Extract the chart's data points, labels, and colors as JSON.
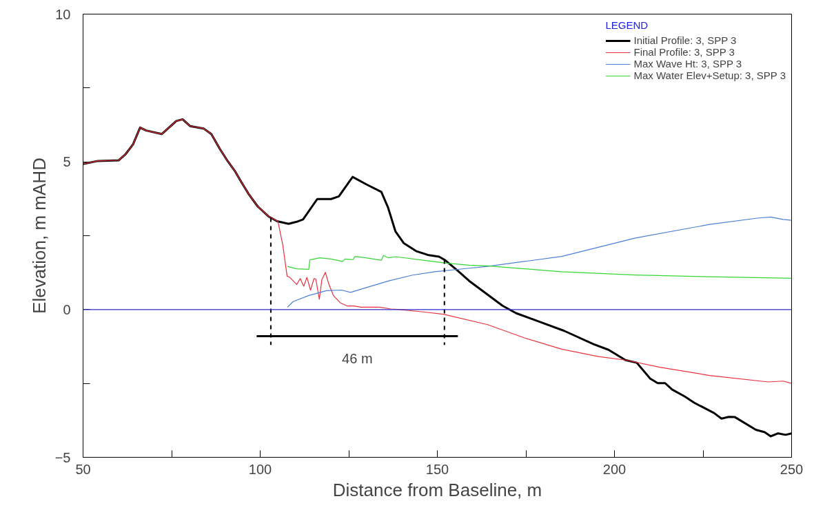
{
  "chart_data": {
    "type": "line",
    "xlabel": "Distance from Baseline, m",
    "ylabel": "Elevation, m mAHD",
    "legend_title": "LEGEND",
    "legend": "top right",
    "grid": false,
    "marker": "none",
    "line_style": "solid",
    "xlim": [
      50,
      250
    ],
    "ylim": [
      -5,
      10
    ],
    "xticks": [
      50,
      {
        "value": 75,
        "label": null
      },
      100,
      {
        "value": 125,
        "label": null
      },
      150,
      {
        "value": 175,
        "label": null
      },
      200,
      {
        "value": 225,
        "label": null
      },
      250
    ],
    "yticks": [
      -5,
      {
        "value": -2.5,
        "label": null
      },
      0,
      {
        "value": 2.5,
        "label": null
      },
      5,
      {
        "value": 7.5,
        "label": null
      },
      10
    ],
    "series": [
      {
        "name": "Initial Profile: 3, SPP 3",
        "color": "#000000",
        "x": [
          50,
          54.2,
          60.0,
          62,
          64.1,
          66.1,
          67.8,
          72.2,
          76.3,
          78.1,
          80.2,
          84.0,
          86.2,
          88.6,
          90.9,
          92.8,
          94.7,
          96.7,
          99.3,
          102.5,
          104.8,
          108.0,
          110.3,
          112.1,
          116.1,
          120.0,
          122.2,
          126.1,
          130.1,
          134.2,
          136.1,
          138.2,
          140.5,
          144.0,
          147.3,
          150.5,
          152.1,
          155.7,
          159.0,
          168.4,
          172.2,
          178.1,
          185.8,
          194.1,
          198.3,
          203.1,
          206.3,
          210.1,
          212.2,
          214.3,
          216.3,
          219.8,
          222.6,
          228.1,
          230.2,
          232.3,
          234.0,
          239.9,
          242.4,
          244.1,
          246.2,
          248.3,
          250
        ],
        "values": [
          4.93,
          5.03,
          5.05,
          5.26,
          5.59,
          6.16,
          6.06,
          5.94,
          6.38,
          6.44,
          6.21,
          6.13,
          5.94,
          5.44,
          5.01,
          4.7,
          4.31,
          3.92,
          3.49,
          3.14,
          2.99,
          2.9,
          2.97,
          3.05,
          3.74,
          3.74,
          3.83,
          4.49,
          4.23,
          3.98,
          3.45,
          2.64,
          2.25,
          1.98,
          1.85,
          1.79,
          1.68,
          1.32,
          0.97,
          0.13,
          -0.12,
          -0.38,
          -0.72,
          -1.17,
          -1.36,
          -1.71,
          -1.8,
          -2.34,
          -2.49,
          -2.49,
          -2.71,
          -2.94,
          -3.16,
          -3.5,
          -3.69,
          -3.63,
          -3.64,
          -4.07,
          -4.15,
          -4.29,
          -4.19,
          -4.24,
          -4.19
        ]
      },
      {
        "name": "Final Profile: 3, SPP 3",
        "color": "#e8303c",
        "x": [
          50,
          54.2,
          60.0,
          62,
          64.1,
          66.1,
          67.8,
          72.2,
          76.3,
          78.1,
          80.2,
          84.0,
          86.2,
          88.6,
          90.9,
          92.8,
          94.7,
          96.7,
          99.3,
          102.5,
          105.0,
          106.4,
          107.6,
          108.4,
          109.3,
          110.3,
          111.3,
          112.3,
          113.2,
          114.2,
          115.2,
          115.7,
          116.7,
          117.4,
          118.4,
          119.4,
          120.7,
          122.6,
          124.6,
          126.5,
          128.4,
          131.1,
          133.7,
          136.9,
          139.5,
          146.0,
          151.7,
          164.2,
          174.6,
          185.1,
          195.5,
          203.1,
          212.8,
          226.8,
          243.4,
          247.6,
          250
        ],
        "values": [
          4.93,
          5.03,
          5.05,
          5.26,
          5.59,
          6.16,
          6.06,
          5.94,
          6.38,
          6.44,
          6.21,
          6.13,
          5.94,
          5.44,
          5.01,
          4.7,
          4.31,
          3.92,
          3.49,
          3.14,
          2.99,
          2.17,
          1.13,
          1.09,
          0.97,
          0.85,
          1.05,
          0.79,
          1.09,
          0.66,
          1.05,
          1.03,
          0.35,
          1.01,
          1.26,
          0.85,
          0.47,
          0.23,
          0.12,
          0.12,
          0.08,
          0.08,
          0.08,
          0.02,
          0.0,
          -0.08,
          -0.16,
          -0.51,
          -0.96,
          -1.34,
          -1.59,
          -1.71,
          -1.95,
          -2.23,
          -2.45,
          -2.42,
          -2.5
        ]
      },
      {
        "name": "Max Wave Ht: 3, SPP 3",
        "color": "#4a7fd6",
        "x": [
          107.7,
          109.3,
          113.6,
          118.7,
          123.0,
          125.5,
          129.8,
          136.3,
          142.8,
          149.2,
          159.0,
          164.2,
          185.1,
          205.9,
          226.8,
          240.7,
          244.1,
          247.6,
          250
        ],
        "values": [
          0.08,
          0.27,
          0.47,
          0.64,
          0.66,
          0.58,
          0.74,
          0.97,
          1.16,
          1.28,
          1.4,
          1.46,
          1.8,
          2.42,
          2.88,
          3.1,
          3.13,
          3.05,
          3.02
        ]
      },
      {
        "name": "Max Water Elev+Setup: 3, SPP 3",
        "color": "#33d633",
        "x": [
          107.7,
          110.3,
          113.7,
          114.0,
          116.8,
          120.0,
          123.3,
          123.9,
          126.2,
          126.8,
          129.8,
          134.2,
          134.8,
          136.2,
          138.2,
          146.0,
          152.5,
          159.0,
          164.2,
          185.1,
          205.9,
          226.8,
          250
        ],
        "values": [
          1.46,
          1.38,
          1.36,
          1.68,
          1.75,
          1.71,
          1.63,
          1.71,
          1.69,
          1.8,
          1.75,
          1.67,
          1.83,
          1.75,
          1.79,
          1.67,
          1.57,
          1.5,
          1.48,
          1.28,
          1.17,
          1.11,
          1.06
        ]
      },
      {
        "color": "#000000",
        "x": [
          99,
          155.8
        ],
        "values": [
          -0.9,
          -0.9
        ]
      }
    ],
    "ref_lines": [
      {
        "axis": "y",
        "value": 0,
        "color": "#2a2ad0",
        "line_style": "solid"
      },
      {
        "axis": "x",
        "value": 103,
        "color": "#000000",
        "line_style": "dashed"
      },
      {
        "axis": "x",
        "value": 152,
        "color": "#000000",
        "line_style": "dashed"
      }
    ],
    "annotations": [
      "46 m"
    ]
  }
}
